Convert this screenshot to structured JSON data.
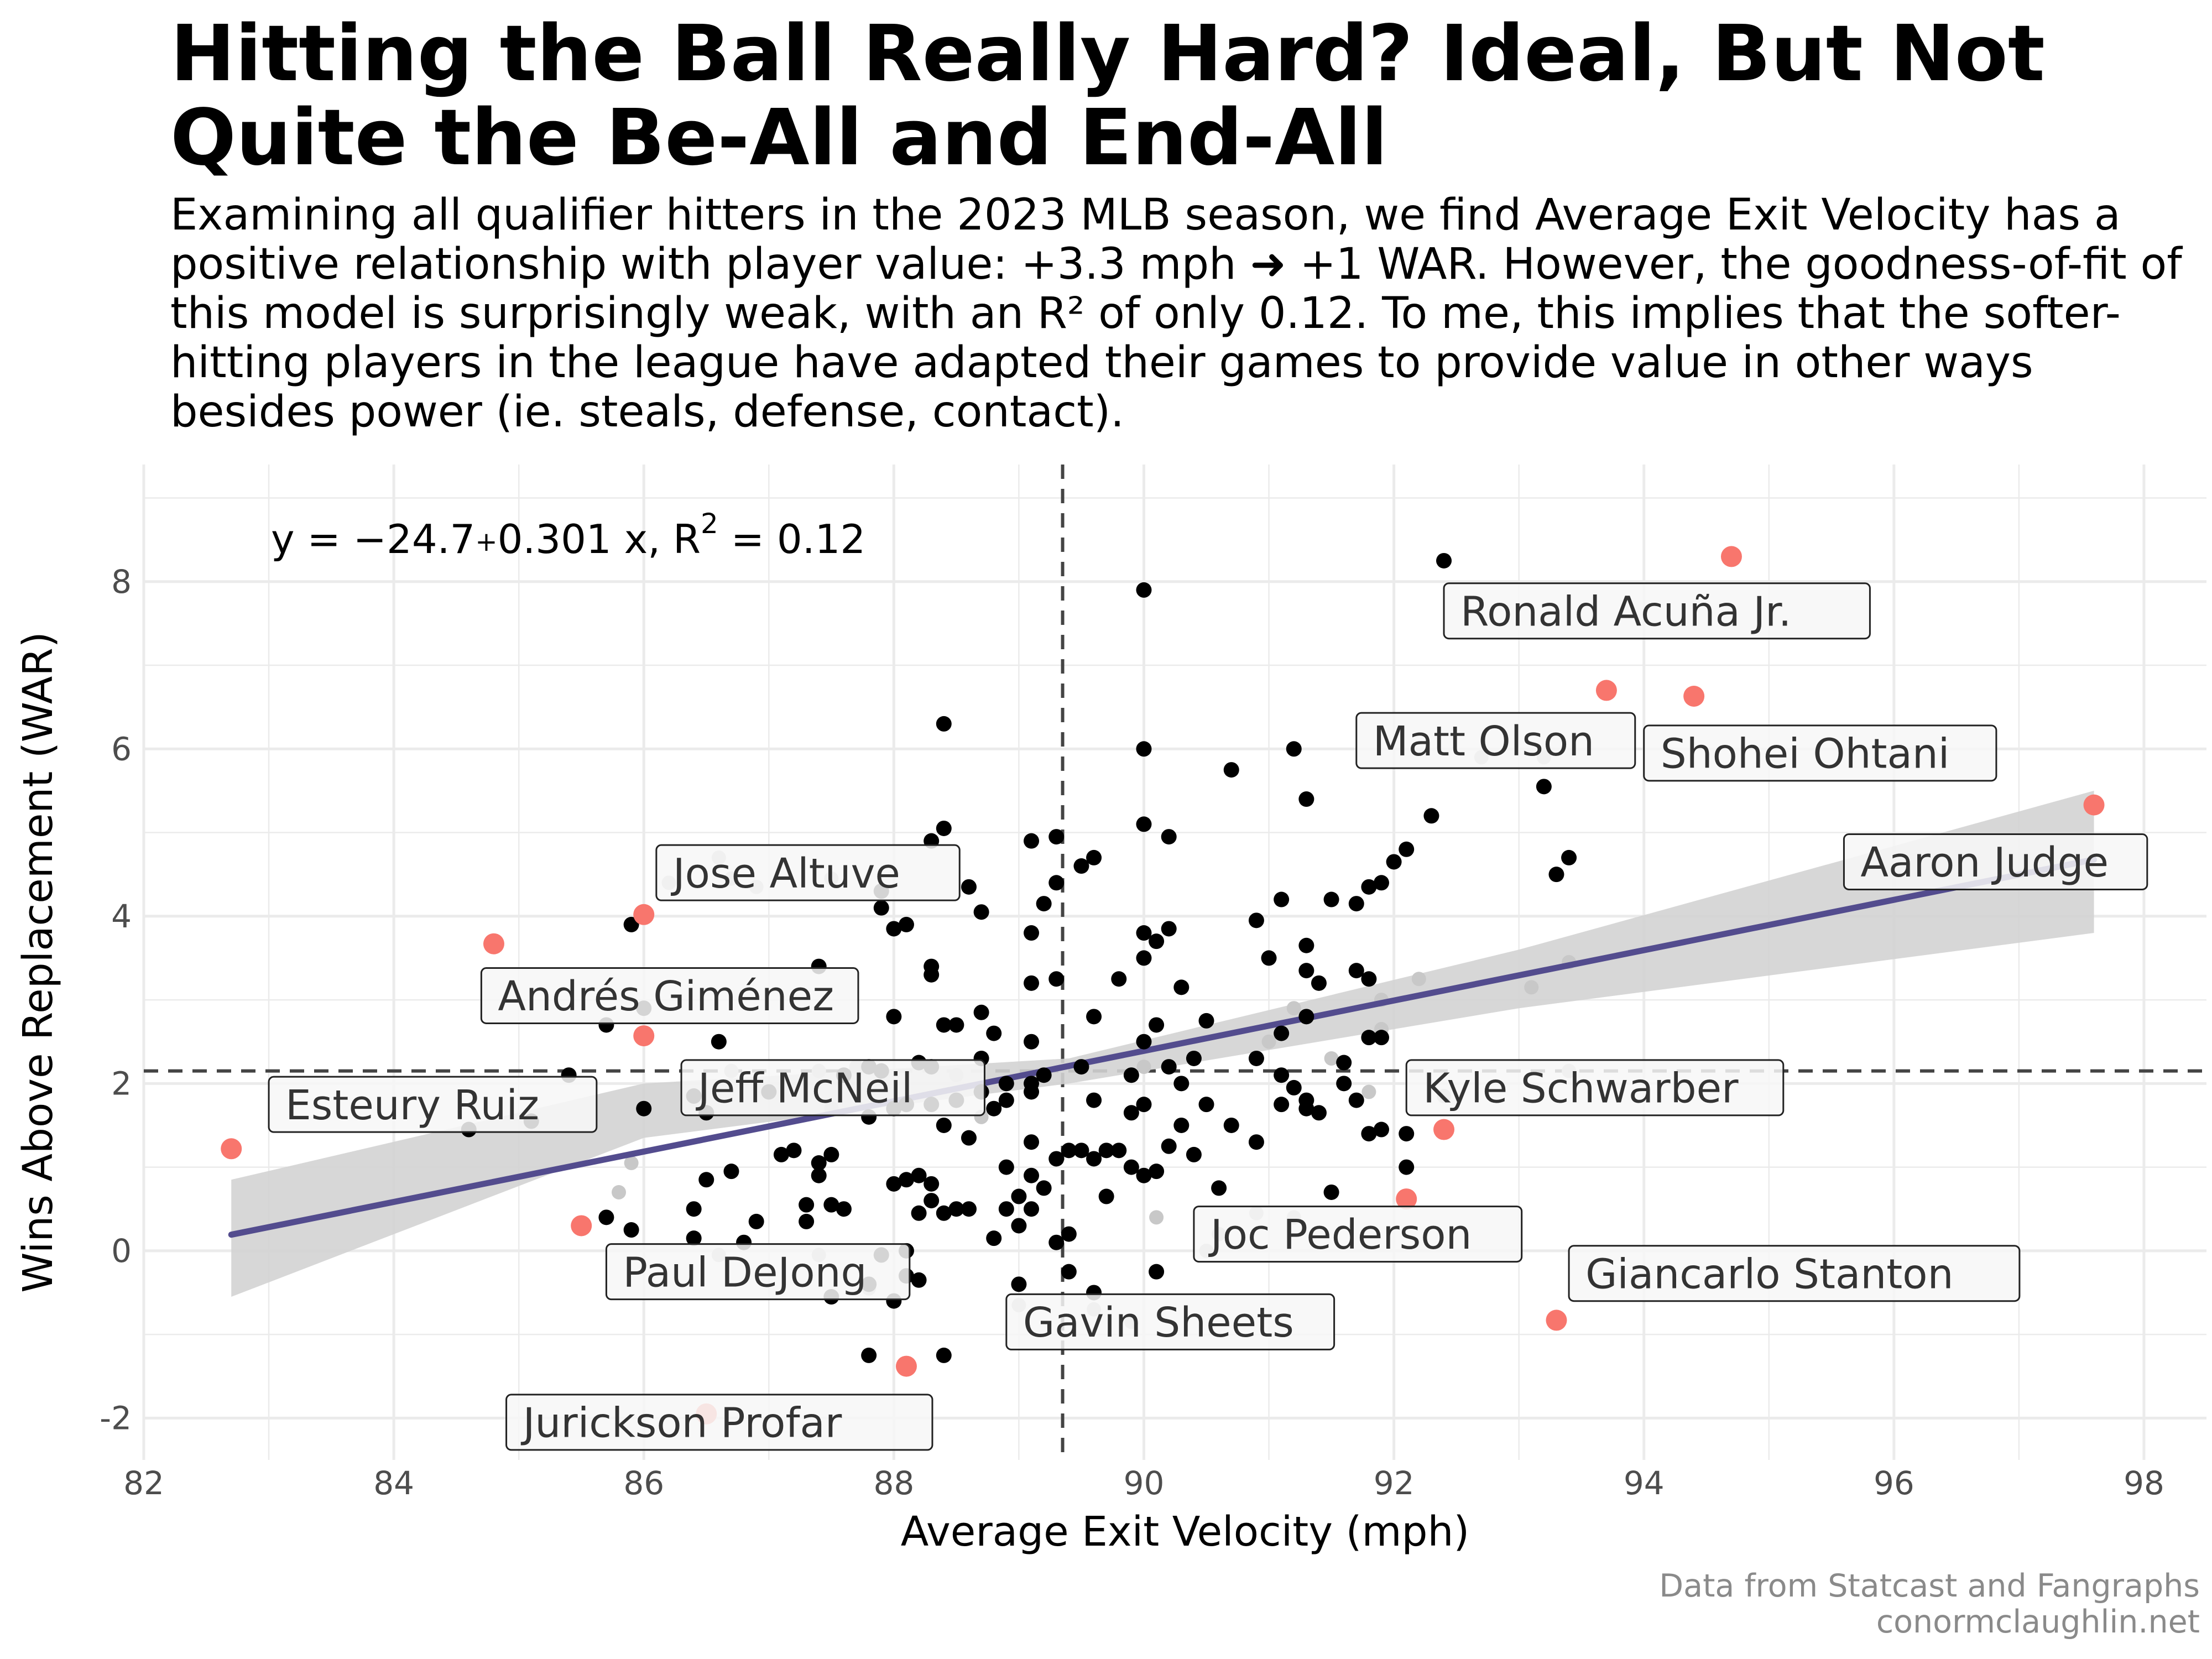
{
  "title": "Hitting the Ball Really Hard? Ideal, But Not Quite the Be-All and End-All",
  "subtitle": "Examining all qualifier hitters in the 2023 MLB season, we find Average Exit Velocity has a positive relationship with player value: +3.3 mph ➜ +1 WAR. However, the goodness-of-fit of this model is surprisingly weak, with an R² of only 0.12. To me, this implies that the softer-hitting players in the league have adapted their games to provide value in other ways besides power (ie. steals, defense, contact).",
  "caption": {
    "line1": "Data from Statcast and Fangraphs",
    "line2": "conormclaughlin.net"
  },
  "colors": {
    "point": "#000000",
    "highlight": "#f8766d",
    "regression": "#534c8e",
    "ribbon": "#d3d3d3",
    "grid": "#ebebeb",
    "reference": "#444444",
    "label_fill": "#f7f7f7"
  },
  "chart_data": {
    "type": "scatter",
    "xlabel": "Average Exit Velocity (mph)",
    "ylabel": "Wins Above Replacement (WAR)",
    "xlim": [
      82,
      98.5
    ],
    "ylim": [
      -2.5,
      9.4
    ],
    "x_ticks": [
      82,
      84,
      86,
      88,
      90,
      92,
      94,
      96,
      98
    ],
    "y_ticks": [
      -2,
      0,
      2,
      4,
      6,
      8
    ],
    "x_tick_labels": [
      "82",
      "84",
      "86",
      "88",
      "90",
      "92",
      "94",
      "96",
      "98"
    ],
    "y_tick_labels": [
      "-2",
      "0",
      "2",
      "4",
      "6",
      "8"
    ],
    "grid": true,
    "equation": {
      "prefix": "y = ",
      "intercept": "−24.7",
      "plus": "+",
      "slope": "0.301",
      "x_and_r": " x, R",
      "sup": "2",
      "tail": " = 0.12"
    },
    "regression": {
      "intercept": -24.7,
      "slope": 0.301,
      "r2": 0.12,
      "x_range": [
        82.7,
        97.6
      ],
      "band": [
        {
          "x": 82.7,
          "lo": -0.55,
          "hi": 0.85
        },
        {
          "x": 86,
          "lo": 1.35,
          "hi": 2.0
        },
        {
          "x": 89.4,
          "lo": 2.0,
          "hi": 2.3
        },
        {
          "x": 93,
          "lo": 2.9,
          "hi": 3.6
        },
        {
          "x": 97.6,
          "lo": 3.8,
          "hi": 5.5
        }
      ]
    },
    "vline": 89.35,
    "hline": 2.15,
    "points": [
      [
        84.6,
        1.45
      ],
      [
        85.1,
        1.55
      ],
      [
        85.4,
        2.1
      ],
      [
        85.7,
        2.7
      ],
      [
        85.7,
        0.4
      ],
      [
        85.9,
        0.25
      ],
      [
        85.9,
        3.9
      ],
      [
        86.0,
        2.9
      ],
      [
        86.0,
        1.7
      ],
      [
        86.4,
        1.85
      ],
      [
        86.4,
        0.5
      ],
      [
        86.4,
        0.15
      ],
      [
        86.5,
        1.65
      ],
      [
        86.5,
        0.85
      ],
      [
        86.6,
        2.5
      ],
      [
        86.7,
        0.95
      ],
      [
        86.8,
        0.1
      ],
      [
        86.9,
        0.35
      ],
      [
        87.0,
        1.9
      ],
      [
        87.1,
        1.15
      ],
      [
        87.2,
        1.2
      ],
      [
        87.3,
        0.55
      ],
      [
        87.3,
        0.35
      ],
      [
        87.4,
        1.05
      ],
      [
        87.4,
        0.9
      ],
      [
        87.4,
        3.4
      ],
      [
        87.5,
        1.15
      ],
      [
        87.5,
        0.55
      ],
      [
        87.6,
        2.1
      ],
      [
        87.5,
        -0.55
      ],
      [
        87.6,
        0.5
      ],
      [
        87.8,
        2.2
      ],
      [
        87.8,
        -0.4
      ],
      [
        87.8,
        -1.25
      ],
      [
        87.8,
        1.6
      ],
      [
        87.9,
        2.15
      ],
      [
        87.9,
        -0.05
      ],
      [
        87.9,
        4.3
      ],
      [
        87.9,
        4.1
      ],
      [
        88.0,
        -0.6
      ],
      [
        88.0,
        3.85
      ],
      [
        88.0,
        2.8
      ],
      [
        88.0,
        1.7
      ],
      [
        88.0,
        0.8
      ],
      [
        88.1,
        1.75
      ],
      [
        88.1,
        0.85
      ],
      [
        88.1,
        0.0
      ],
      [
        88.1,
        3.9
      ],
      [
        88.1,
        -0.3
      ],
      [
        88.2,
        0.45
      ],
      [
        88.2,
        2.25
      ],
      [
        88.2,
        0.9
      ],
      [
        88.2,
        -0.35
      ],
      [
        88.3,
        1.75
      ],
      [
        88.3,
        3.4
      ],
      [
        88.3,
        3.3
      ],
      [
        88.3,
        2.2
      ],
      [
        88.3,
        0.6
      ],
      [
        88.3,
        0.8
      ],
      [
        88.3,
        4.9
      ],
      [
        88.4,
        5.05
      ],
      [
        88.4,
        6.3
      ],
      [
        88.4,
        2.7
      ],
      [
        88.4,
        1.5
      ],
      [
        88.4,
        0.45
      ],
      [
        88.4,
        -1.25
      ],
      [
        88.5,
        2.7
      ],
      [
        88.5,
        1.8
      ],
      [
        88.5,
        0.5
      ],
      [
        88.6,
        4.35
      ],
      [
        88.6,
        1.35
      ],
      [
        88.6,
        0.5
      ],
      [
        88.7,
        4.05
      ],
      [
        88.7,
        2.85
      ],
      [
        88.7,
        2.3
      ],
      [
        88.7,
        1.9
      ],
      [
        88.8,
        2.6
      ],
      [
        88.8,
        1.7
      ],
      [
        88.8,
        0.15
      ],
      [
        88.9,
        2.0
      ],
      [
        88.9,
        1.8
      ],
      [
        88.9,
        1.0
      ],
      [
        88.9,
        0.5
      ],
      [
        89.0,
        0.65
      ],
      [
        89.0,
        0.3
      ],
      [
        89.0,
        -0.4
      ],
      [
        89.1,
        4.9
      ],
      [
        89.1,
        3.8
      ],
      [
        89.1,
        3.2
      ],
      [
        89.1,
        2.5
      ],
      [
        89.1,
        2.0
      ],
      [
        89.1,
        1.9
      ],
      [
        89.1,
        1.3
      ],
      [
        89.1,
        0.9
      ],
      [
        89.1,
        0.5
      ],
      [
        89.2,
        4.15
      ],
      [
        89.2,
        2.1
      ],
      [
        89.2,
        0.75
      ],
      [
        89.3,
        4.95
      ],
      [
        89.3,
        3.25
      ],
      [
        89.3,
        1.1
      ],
      [
        89.3,
        0.1
      ],
      [
        89.3,
        4.4
      ],
      [
        89.4,
        1.2
      ],
      [
        89.4,
        0.2
      ],
      [
        89.4,
        -0.25
      ],
      [
        89.5,
        4.6
      ],
      [
        89.5,
        2.2
      ],
      [
        89.5,
        1.2
      ],
      [
        89.6,
        4.7
      ],
      [
        89.6,
        2.8
      ],
      [
        89.6,
        1.8
      ],
      [
        89.6,
        1.1
      ],
      [
        89.6,
        -0.5
      ],
      [
        89.7,
        1.2
      ],
      [
        89.7,
        0.65
      ],
      [
        89.8,
        3.25
      ],
      [
        89.8,
        1.2
      ],
      [
        89.9,
        2.1
      ],
      [
        89.9,
        1.65
      ],
      [
        89.9,
        1.0
      ],
      [
        90.0,
        7.9
      ],
      [
        90.0,
        6.0
      ],
      [
        90.0,
        5.1
      ],
      [
        90.0,
        3.8
      ],
      [
        90.0,
        3.5
      ],
      [
        90.0,
        2.5
      ],
      [
        90.0,
        1.75
      ],
      [
        90.0,
        0.9
      ],
      [
        90.1,
        3.7
      ],
      [
        90.1,
        2.7
      ],
      [
        90.1,
        0.95
      ],
      [
        90.1,
        -0.25
      ],
      [
        90.2,
        4.95
      ],
      [
        90.2,
        3.85
      ],
      [
        90.2,
        2.2
      ],
      [
        90.2,
        1.25
      ],
      [
        90.3,
        3.15
      ],
      [
        90.3,
        2.0
      ],
      [
        90.3,
        1.5
      ],
      [
        90.4,
        2.3
      ],
      [
        90.4,
        1.15
      ],
      [
        90.5,
        2.75
      ],
      [
        90.5,
        1.75
      ],
      [
        90.6,
        0.75
      ],
      [
        90.7,
        5.75
      ],
      [
        90.7,
        1.5
      ],
      [
        90.9,
        3.95
      ],
      [
        90.9,
        2.3
      ],
      [
        90.9,
        1.3
      ],
      [
        91.0,
        3.5
      ],
      [
        91.1,
        4.2
      ],
      [
        91.1,
        2.6
      ],
      [
        91.1,
        2.1
      ],
      [
        91.1,
        1.75
      ],
      [
        91.2,
        6.0
      ],
      [
        91.2,
        1.95
      ],
      [
        91.3,
        5.4
      ],
      [
        91.3,
        3.65
      ],
      [
        91.3,
        3.35
      ],
      [
        91.3,
        1.8
      ],
      [
        91.3,
        1.7
      ],
      [
        91.3,
        2.8
      ],
      [
        91.4,
        3.2
      ],
      [
        91.4,
        1.65
      ],
      [
        91.5,
        4.2
      ],
      [
        91.5,
        0.7
      ],
      [
        91.6,
        2.25
      ],
      [
        91.6,
        2.0
      ],
      [
        91.7,
        4.15
      ],
      [
        91.7,
        3.35
      ],
      [
        91.7,
        1.8
      ],
      [
        91.8,
        4.35
      ],
      [
        91.8,
        3.25
      ],
      [
        91.8,
        2.55
      ],
      [
        91.8,
        1.4
      ],
      [
        91.9,
        4.4
      ],
      [
        91.9,
        2.55
      ],
      [
        91.9,
        1.45
      ],
      [
        92.0,
        4.65
      ],
      [
        92.1,
        4.8
      ],
      [
        92.1,
        1.4
      ],
      [
        92.1,
        1.0
      ],
      [
        92.3,
        5.2
      ],
      [
        92.4,
        8.25
      ],
      [
        93.2,
        5.55
      ],
      [
        93.3,
        4.5
      ],
      [
        93.4,
        4.7
      ]
    ],
    "faded_points": [
      [
        85.8,
        0.7
      ],
      [
        85.9,
        1.05
      ],
      [
        86.2,
        4.4
      ],
      [
        86.6,
        4.7
      ],
      [
        86.7,
        4.45
      ],
      [
        86.9,
        4.35
      ],
      [
        86.7,
        2.15
      ],
      [
        86.6,
        -0.05
      ],
      [
        87.4,
        2.15
      ],
      [
        87.4,
        -0.05
      ],
      [
        87.5,
        4.45
      ],
      [
        87.5,
        1.7
      ],
      [
        87.7,
        2.2
      ],
      [
        87.8,
        -0.45
      ],
      [
        88.5,
        2.1
      ],
      [
        88.7,
        1.6
      ],
      [
        89.0,
        -0.65
      ],
      [
        89.6,
        -0.7
      ],
      [
        89.9,
        -0.85
      ],
      [
        90.0,
        2.2
      ],
      [
        90.1,
        0.4
      ],
      [
        90.5,
        0.0
      ],
      [
        90.6,
        0.2
      ],
      [
        90.9,
        0.45
      ],
      [
        91.0,
        2.5
      ],
      [
        91.2,
        0.4
      ],
      [
        91.2,
        2.9
      ],
      [
        91.5,
        2.3
      ],
      [
        91.8,
        1.9
      ],
      [
        91.9,
        3.0
      ],
      [
        91.9,
        2.65
      ],
      [
        92.2,
        3.25
      ],
      [
        92.4,
        1.85
      ],
      [
        92.7,
        5.9
      ],
      [
        93.1,
        3.15
      ],
      [
        93.2,
        5.9
      ],
      [
        93.4,
        3.45
      ],
      [
        93.4,
        2.15
      ]
    ],
    "highlighted": [
      {
        "name": "Ronald Acuña Jr.",
        "x": 94.7,
        "y": 8.3,
        "lx": 92.4,
        "ly": 7.65
      },
      {
        "name": "Matt Olson",
        "x": 93.7,
        "y": 6.7,
        "lx": 91.7,
        "ly": 6.1
      },
      {
        "name": "Shohei Ohtani",
        "x": 94.4,
        "y": 6.63,
        "lx": 94.0,
        "ly": 5.95
      },
      {
        "name": "Aaron Judge",
        "x": 97.6,
        "y": 5.33,
        "lx": 95.6,
        "ly": 4.65
      },
      {
        "name": "Jose Altuve",
        "x": 86.0,
        "y": 4.02,
        "lx": 86.1,
        "ly": 4.52
      },
      {
        "name": "Andrés Giménez",
        "x": 84.8,
        "y": 3.67,
        "lx": 84.7,
        "ly": 3.05
      },
      {
        "name": "Jeff McNeil",
        "x": 86.0,
        "y": 2.57,
        "lx": 86.3,
        "ly": 1.95
      },
      {
        "name": "Kyle Schwarber",
        "x": 92.4,
        "y": 1.45,
        "lx": 92.1,
        "ly": 1.95
      },
      {
        "name": "Esteury Ruiz",
        "x": 82.7,
        "y": 1.22,
        "lx": 83.0,
        "ly": 1.75
      },
      {
        "name": "Joc Pederson",
        "x": 92.1,
        "y": 0.62,
        "lx": 90.4,
        "ly": 0.2
      },
      {
        "name": "Paul DeJong",
        "x": 85.5,
        "y": 0.3,
        "lx": 85.7,
        "ly": -0.25
      },
      {
        "name": "Giancarlo Stanton",
        "x": 93.3,
        "y": -0.83,
        "lx": 93.4,
        "ly": -0.27
      },
      {
        "name": "Gavin Sheets",
        "x": 88.1,
        "y": -1.38,
        "lx": 88.9,
        "ly": -0.85
      },
      {
        "name": "Jurickson Profar",
        "x": 86.5,
        "y": -1.95,
        "lx": 84.9,
        "ly": -2.05
      }
    ]
  }
}
